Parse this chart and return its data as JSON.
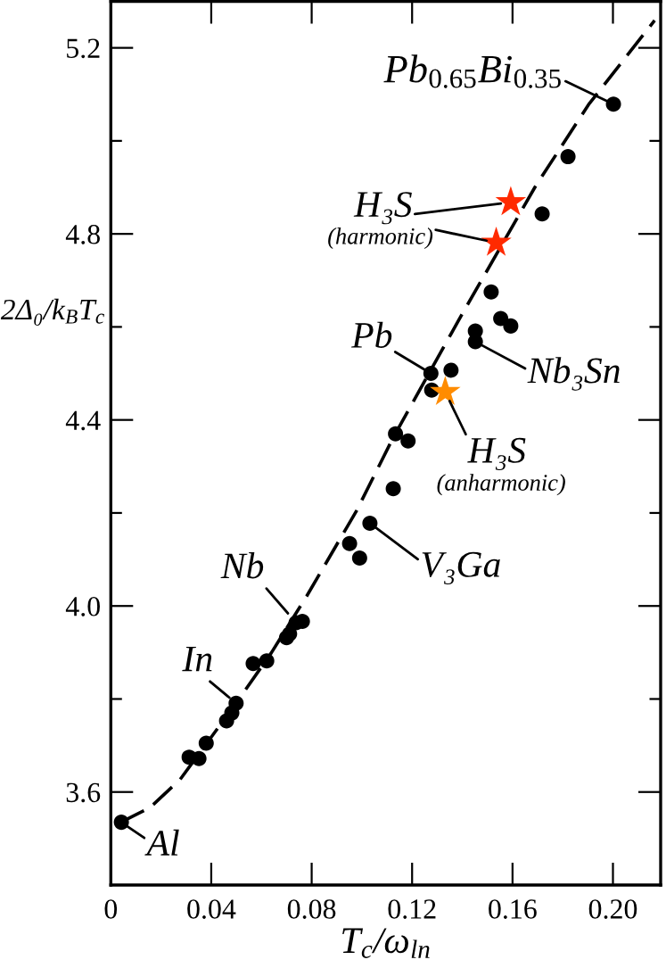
{
  "chart_data": {
    "type": "scatter",
    "xlabel": "T$_{c}$/ω$_{ln}$",
    "ylabel": "2Δ₀/k$_{B}$T$_{c}$",
    "xlim": [
      0,
      0.219
    ],
    "ylim": [
      3.4,
      5.3
    ],
    "xticks": [
      0,
      0.04,
      0.08,
      0.12,
      0.16,
      {
        "value": 0.2,
        "label": "0.20"
      }
    ],
    "yticks": [
      3.6,
      {
        "value": 3.8,
        "label": null
      },
      {
        "value": 4,
        "label": "4.0"
      },
      {
        "value": 4.2,
        "label": null
      },
      4.4,
      {
        "value": 4.6,
        "label": null
      },
      4.8,
      {
        "value": 5,
        "label": null
      },
      5.2
    ],
    "series": [
      {
        "type": "line",
        "color": "#000000",
        "line_style": "dashed",
        "marker": "none",
        "x": [
          0.004,
          0.0155,
          0.0276,
          0.0411,
          0.0525,
          0.0639,
          0.078,
          0.0979,
          0.1121,
          0.1263,
          0.1406,
          0.169,
          0.1903,
          0.2166
        ],
        "values": [
          3.535,
          3.566,
          3.627,
          3.726,
          3.811,
          3.899,
          4.021,
          4.205,
          4.358,
          4.496,
          4.634,
          4.901,
          5.078,
          5.259
        ]
      },
      {
        "color": "#000000",
        "marker": "circle",
        "x": [
          0.0042,
          0.0312,
          0.0351,
          0.038,
          0.0461,
          0.0482,
          0.0499,
          0.0567,
          0.0621,
          0.07,
          0.0712,
          0.0738,
          0.0763,
          0.0951,
          0.0991,
          0.1032,
          0.1125,
          0.1134,
          0.1184,
          0.1275,
          0.1278,
          0.1355,
          0.1452,
          0.1452,
          0.1515,
          0.1553,
          0.1593,
          0.1718,
          0.1821,
          0.2002
        ],
        "values": [
          3.535,
          3.675,
          3.672,
          3.705,
          3.753,
          3.77,
          3.791,
          3.876,
          3.882,
          3.932,
          3.94,
          3.964,
          3.967,
          4.134,
          4.103,
          4.178,
          4.252,
          4.37,
          4.355,
          4.5,
          4.464,
          4.507,
          4.591,
          4.568,
          4.675,
          4.618,
          4.602,
          4.843,
          4.966,
          5.079
        ]
      },
      {
        "color": "#ff2a00",
        "marker": "star",
        "x": [
          0.1535,
          0.1593
        ],
        "values": [
          4.781,
          4.868
        ]
      },
      {
        "color": "#ff8c00",
        "marker": "star",
        "x": [
          0.1332
        ],
        "values": [
          4.46
        ]
      }
    ],
    "annotations": [
      {
        "text": "Pb$_{0.65}$Bi$_{0.35}$",
        "x": 0.2002,
        "y": 5.079
      },
      {
        "text": "H₃S",
        "x": 0.1593,
        "y": 4.868
      },
      {
        "text": "(harmonic)",
        "x": 0.1535,
        "y": 4.781
      },
      {
        "text": "Pb",
        "x": 0.1275,
        "y": 4.5
      },
      {
        "text": "Nb₃Sn",
        "x": 0.1452,
        "y": 4.568
      },
      {
        "text": "H₃S",
        "x": 0.1332,
        "y": 4.46
      },
      "(anharmonic)",
      {
        "text": "V₃Ga",
        "x": 0.1032,
        "y": 4.178
      },
      {
        "text": "Nb",
        "x": 0.0738,
        "y": 3.964
      },
      {
        "text": "In",
        "x": 0.0499,
        "y": 3.791
      },
      {
        "text": "Al",
        "x": 0.0042,
        "y": 3.535
      }
    ]
  }
}
